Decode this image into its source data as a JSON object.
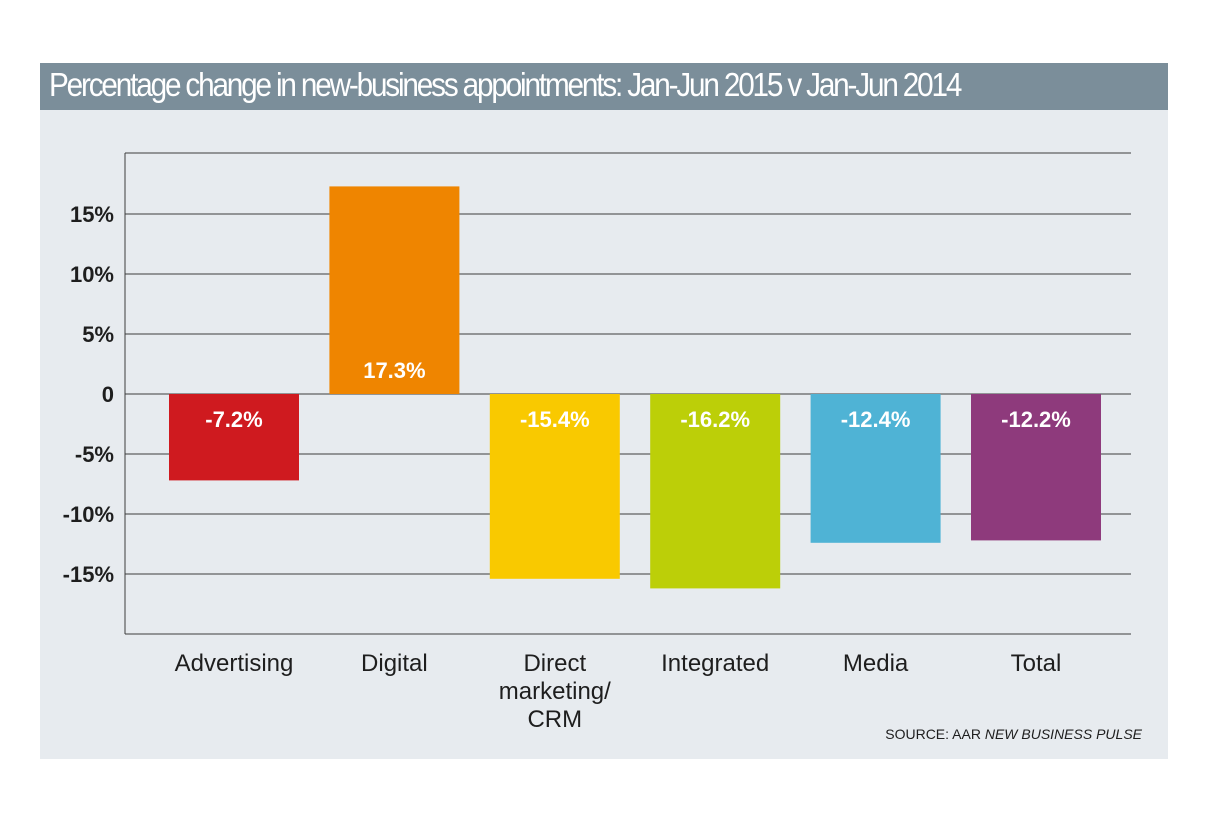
{
  "title": "Percentage change in new-business appointments: Jan-Jun 2015 v Jan-Jun 2014",
  "source_prefix": "SOURCE: AAR ",
  "source_italic": "NEW BUSINESS PULSE",
  "chart_data": {
    "type": "bar",
    "title": "Percentage change in new-business appointments: Jan-Jun 2015 v Jan-Jun 2014",
    "xlabel": "",
    "ylabel": "",
    "ylim": [
      -20,
      20
    ],
    "yticks": [
      15,
      10,
      5,
      0,
      -5,
      -10,
      -15
    ],
    "ytick_labels": [
      "15%",
      "10%",
      "5%",
      "0",
      "-5%",
      "-10%",
      "-15%"
    ],
    "grid": true,
    "categories": [
      "Advertising",
      "Digital",
      "Direct marketing/ CRM",
      "Integrated",
      "Media",
      "Total"
    ],
    "category_lines": [
      [
        "Advertising"
      ],
      [
        "Digital"
      ],
      [
        "Direct",
        "marketing/",
        "CRM"
      ],
      [
        "Integrated"
      ],
      [
        "Media"
      ],
      [
        "Total"
      ]
    ],
    "values": [
      -7.2,
      17.3,
      -15.4,
      -16.2,
      -12.4,
      -12.2
    ],
    "value_labels": [
      "-7.2%",
      "17.3%",
      "-15.4%",
      "-16.2%",
      "-12.4%",
      "-12.2%"
    ],
    "colors": [
      "#cf1a1f",
      "#ef8500",
      "#f9c900",
      "#bccf08",
      "#4fb3d5",
      "#8e3a7c"
    ],
    "source": "SOURCE: AAR NEW BUSINESS PULSE"
  }
}
